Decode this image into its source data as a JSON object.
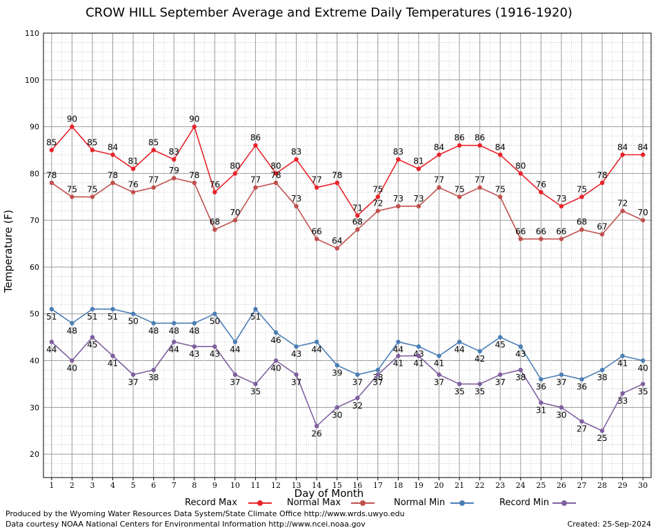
{
  "chart_data": {
    "type": "line",
    "title": "CROW HILL September Average and Extreme Daily Temperatures (1916-1920)",
    "xlabel": "Day of Month",
    "ylabel": "Temperature (F)",
    "x": [
      1,
      2,
      3,
      4,
      5,
      6,
      7,
      8,
      9,
      10,
      11,
      12,
      13,
      14,
      15,
      16,
      17,
      18,
      19,
      20,
      21,
      22,
      23,
      24,
      25,
      26,
      27,
      28,
      29,
      30
    ],
    "xlim": [
      0.6,
      30.4
    ],
    "ylim": [
      15,
      110
    ],
    "yticks": [
      20,
      30,
      40,
      50,
      60,
      70,
      80,
      90,
      100,
      110
    ],
    "grid": true,
    "legend_position": "bottom",
    "series": [
      {
        "name": "Record Max",
        "color": "#e8232a",
        "values": [
          85,
          90,
          85,
          84,
          81,
          85,
          83,
          90,
          76,
          80,
          86,
          80,
          83,
          77,
          78,
          71,
          75,
          83,
          81,
          84,
          86,
          86,
          84,
          80,
          76,
          73,
          75,
          78,
          84,
          84
        ]
      },
      {
        "name": "Normal Max",
        "color": "#c0504d",
        "values": [
          78,
          75,
          75,
          78,
          76,
          77,
          79,
          78,
          68,
          70,
          77,
          78,
          73,
          66,
          64,
          68,
          72,
          73,
          73,
          77,
          75,
          77,
          75,
          66,
          66,
          66,
          68,
          67,
          72,
          70
        ]
      },
      {
        "name": "Normal Min",
        "color": "#4a7eb5",
        "values": [
          51,
          48,
          51,
          51,
          50,
          48,
          48,
          48,
          50,
          44,
          51,
          46,
          43,
          44,
          39,
          37,
          38,
          44,
          43,
          41,
          44,
          42,
          45,
          43,
          36,
          37,
          36,
          38,
          41,
          40
        ]
      },
      {
        "name": "Record Min",
        "color": "#7f5f9f",
        "values": [
          44,
          40,
          45,
          41,
          37,
          38,
          44,
          43,
          43,
          37,
          35,
          40,
          37,
          26,
          30,
          32,
          37,
          41,
          41,
          37,
          35,
          35,
          37,
          38,
          31,
          30,
          27,
          25,
          33,
          35
        ]
      }
    ]
  },
  "footer": {
    "credit1": "Produced by the Wyoming Water Resources Data System/State Climate Office http://www.wrds.uwyo.edu",
    "credit2": "Data courtesy NOAA National Centers for Environmental Information http://www.ncei.noaa.gov",
    "created": "Created:  25-Sep-2024"
  }
}
